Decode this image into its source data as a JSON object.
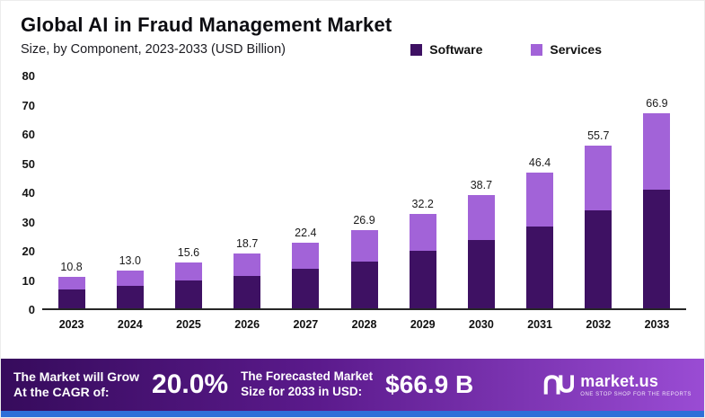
{
  "header": {
    "title": "Global AI in Fraud Management Market",
    "subtitle": "Size, by Component, 2023-2033 (USD Billion)"
  },
  "chart_data": {
    "type": "bar",
    "stacked": true,
    "title": "Global AI in Fraud Management Market",
    "subtitle": "Size, by Component, 2023-2033 (USD Billion)",
    "categories": [
      "2023",
      "2024",
      "2025",
      "2026",
      "2027",
      "2028",
      "2029",
      "2030",
      "2031",
      "2032",
      "2033"
    ],
    "series": [
      {
        "name": "Software",
        "color": "#3e1163",
        "values": [
          6.5,
          7.8,
          9.4,
          11.2,
          13.4,
          16.1,
          19.8,
          23.5,
          28.0,
          33.5,
          40.5
        ]
      },
      {
        "name": "Services",
        "color": "#a263d8",
        "values": [
          4.3,
          5.2,
          6.2,
          7.5,
          9.0,
          10.8,
          12.4,
          15.2,
          18.4,
          22.2,
          26.4
        ]
      }
    ],
    "totals": [
      10.8,
      13.0,
      15.6,
      18.7,
      22.4,
      26.9,
      32.2,
      38.7,
      46.4,
      55.7,
      66.9
    ],
    "ylim": [
      0,
      80
    ],
    "yticks": [
      0,
      10,
      20,
      30,
      40,
      50,
      60,
      70,
      80
    ],
    "grid": false,
    "legend_position": "top-right"
  },
  "banner": {
    "cagr_label_line1": "The Market will Grow",
    "cagr_label_line2": "At the CAGR of:",
    "cagr_value": "20.0%",
    "forecast_label_line1": "The Forecasted Market",
    "forecast_label_line2": "Size for 2033 in USD:",
    "forecast_value": "$66.9 B",
    "brand": "market.us",
    "brand_tagline": "ONE STOP SHOP FOR THE REPORTS"
  },
  "colors": {
    "software": "#3e1163",
    "services": "#a263d8",
    "banner_gradient_left": "#360b5c",
    "banner_gradient_mid": "#5b1a8c",
    "banner_gradient_right": "#9a4cd4",
    "bottom_strip": "#2e6fd8"
  }
}
